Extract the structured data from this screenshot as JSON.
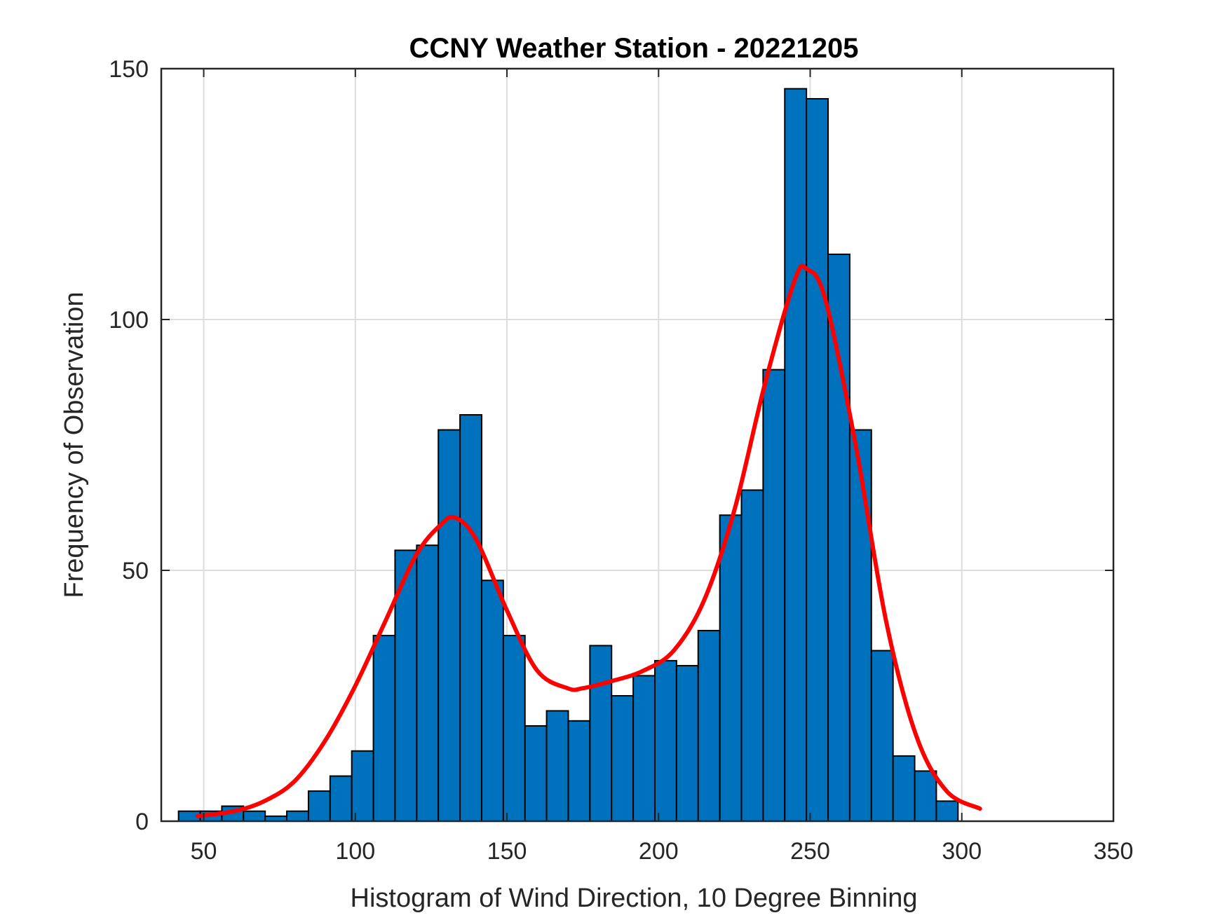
{
  "chart_data": {
    "type": "bar",
    "title": "CCNY Weather Station - 20221205",
    "xlabel": "Histogram of Wind Direction, 10 Degree Binning",
    "ylabel": "Frequency of Observation",
    "xlim": [
      36,
      350
    ],
    "ylim": [
      0,
      150
    ],
    "grid": true,
    "xticks": [
      50,
      100,
      150,
      200,
      250,
      300,
      350
    ],
    "yticks": [
      0,
      50,
      100,
      150
    ],
    "bin_width": 7.14,
    "bin_start": 41.7,
    "values": [
      2,
      2,
      3,
      2,
      1,
      2,
      6,
      9,
      14,
      37,
      54,
      55,
      78,
      81,
      48,
      37,
      19,
      22,
      20,
      35,
      25,
      29,
      32,
      31,
      38,
      61,
      66,
      90,
      146,
      144,
      113,
      78,
      34,
      13,
      10,
      4
    ],
    "fit_curve": {
      "x": [
        48,
        60,
        70,
        80,
        90,
        100,
        110,
        120,
        128,
        133,
        140,
        150,
        160,
        170,
        175,
        185,
        195,
        205,
        215,
        225,
        235,
        245,
        249,
        255,
        265,
        275,
        285,
        295,
        306
      ],
      "y": [
        1,
        2,
        4,
        8,
        16,
        27,
        40,
        53,
        59,
        60.5,
        56,
        42,
        30,
        26.5,
        26.5,
        28,
        30,
        34,
        44,
        62,
        87,
        108,
        110,
        104,
        75,
        40,
        17,
        6,
        2.5
      ]
    },
    "colors": {
      "bar_fill": "#0072BD",
      "bar_edge": "#000000",
      "curve": "#FF0000",
      "grid": "#DDDDDD"
    }
  }
}
